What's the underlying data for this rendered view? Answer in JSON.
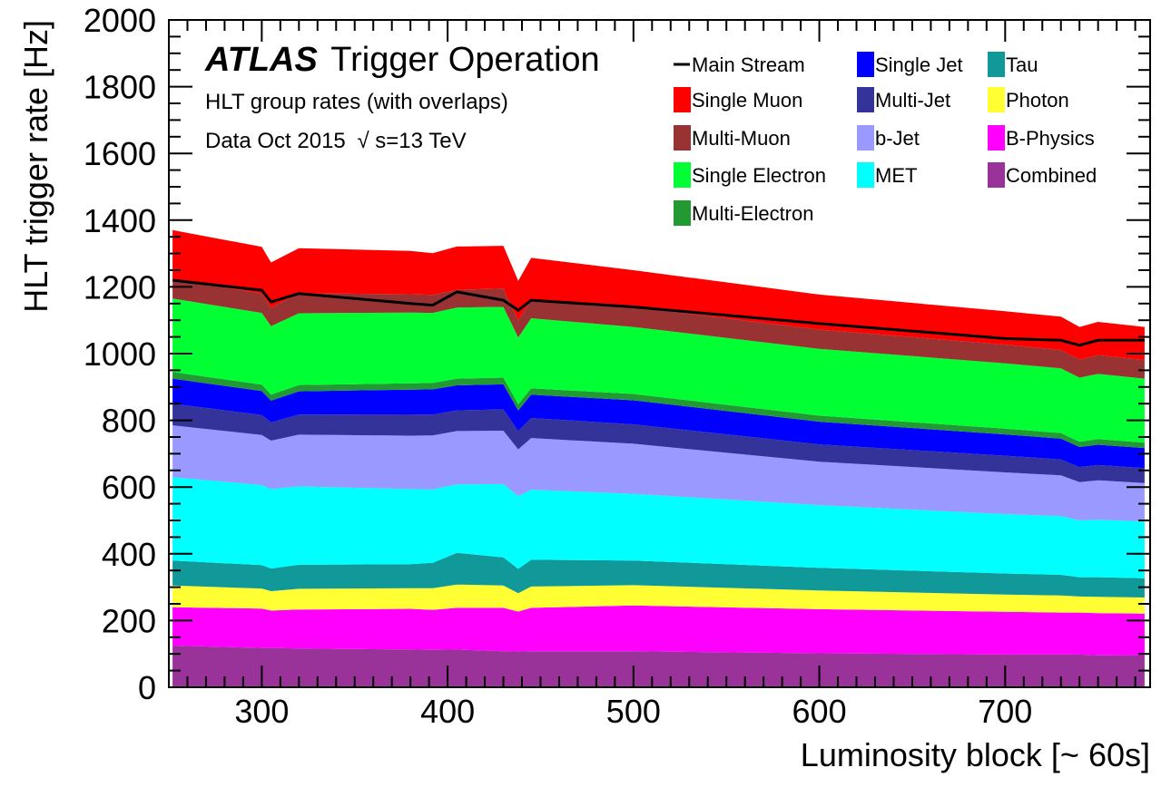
{
  "chart_data": {
    "type": "area",
    "stacked": true,
    "x": [
      252,
      300,
      305,
      320,
      380,
      392,
      405,
      430,
      438,
      445,
      500,
      600,
      700,
      730,
      740,
      750,
      775
    ],
    "xlim": [
      250,
      778
    ],
    "ylim": [
      0,
      2000
    ],
    "xticks": [
      300,
      400,
      500,
      600,
      700
    ],
    "yticks": [
      0,
      200,
      400,
      600,
      800,
      1000,
      1200,
      1400,
      1600,
      1800,
      2000
    ],
    "tick_labels_x": [
      "300",
      "400",
      "500",
      "600",
      "700"
    ],
    "tick_labels_y": [
      "0",
      "200",
      "400",
      "600",
      "800",
      "1000",
      "1200",
      "1400",
      "1600",
      "1800",
      "2000"
    ],
    "xlabel": "Luminosity block [~ 60s]",
    "ylabel": "HLT trigger rate [Hz]",
    "grid": false,
    "annotations": {
      "atlas_bold": "ATLAS",
      "atlas_rest": "Trigger Operation",
      "line2": "HLT group rates (with overlaps)",
      "line3_pre": "Data Oct 2015",
      "sqrt": "√",
      "line3_post": "s=13 TeV"
    },
    "stack_order_bottom_to_top": [
      "Combined",
      "B-Physics",
      "Photon",
      "Tau",
      "MET",
      "b-Jet",
      "Multi-Jet",
      "Single Jet",
      "Multi-Electron",
      "Single Electron",
      "Multi-Muon",
      "Single Muon"
    ],
    "series": [
      {
        "name": "Combined",
        "color": "#993399",
        "values": [
          125,
          118,
          118,
          116,
          113,
          112,
          113,
          108,
          107,
          108,
          108,
          102,
          98,
          98,
          98,
          96,
          95
        ]
      },
      {
        "name": "B-Physics",
        "color": "#ff00ff",
        "values": [
          115,
          118,
          112,
          117,
          122,
          120,
          125,
          130,
          120,
          130,
          137,
          132,
          128,
          126,
          126,
          126,
          126
        ]
      },
      {
        "name": "Photon",
        "color": "#ffff33",
        "values": [
          65,
          60,
          58,
          62,
          62,
          65,
          70,
          67,
          55,
          64,
          61,
          56,
          52,
          51,
          48,
          49,
          48
        ]
      },
      {
        "name": "Tau",
        "color": "#119999",
        "values": [
          75,
          70,
          68,
          72,
          72,
          76,
          95,
          84,
          73,
          80,
          74,
          68,
          63,
          62,
          58,
          59,
          58
        ]
      },
      {
        "name": "MET",
        "color": "#00ffff",
        "values": [
          250,
          240,
          238,
          235,
          225,
          220,
          205,
          220,
          218,
          210,
          200,
          188,
          178,
          176,
          170,
          172,
          170
        ]
      },
      {
        "name": "b-Jet",
        "color": "#9999ff",
        "values": [
          155,
          150,
          145,
          155,
          160,
          162,
          160,
          160,
          140,
          155,
          150,
          130,
          125,
          122,
          115,
          118,
          115
        ]
      },
      {
        "name": "Multi-Jet",
        "color": "#333399",
        "values": [
          65,
          60,
          55,
          60,
          64,
          62,
          62,
          64,
          55,
          60,
          58,
          52,
          50,
          48,
          45,
          46,
          45
        ]
      },
      {
        "name": "Single Jet",
        "color": "#0000ff",
        "values": [
          75,
          72,
          65,
          70,
          74,
          76,
          75,
          75,
          62,
          70,
          72,
          68,
          64,
          62,
          60,
          61,
          60
        ]
      },
      {
        "name": "Multi-Electron",
        "color": "#229933",
        "values": [
          20,
          19,
          18,
          19,
          19,
          19,
          20,
          20,
          18,
          19,
          19,
          18,
          17,
          17,
          16,
          17,
          16
        ]
      },
      {
        "name": "Single Electron",
        "color": "#00ff33",
        "values": [
          220,
          215,
          205,
          215,
          212,
          210,
          213,
          212,
          200,
          210,
          201,
          200,
          196,
          194,
          192,
          195,
          192
        ]
      },
      {
        "name": "Multi-Muon",
        "color": "#993333",
        "values": [
          60,
          58,
          56,
          60,
          55,
          54,
          53,
          55,
          52,
          56,
          60,
          58,
          56,
          55,
          54,
          56,
          56
        ]
      },
      {
        "name": "Single Muon",
        "color": "#ff0000",
        "values": [
          145,
          140,
          135,
          135,
          130,
          125,
          130,
          128,
          118,
          125,
          110,
          105,
          100,
          100,
          98,
          100,
          99
        ]
      }
    ],
    "main_stream": {
      "name": "Main Stream",
      "color": "#000000",
      "values": [
        1220,
        1190,
        1155,
        1180,
        1150,
        1145,
        1185,
        1160,
        1130,
        1160,
        1140,
        1090,
        1045,
        1040,
        1025,
        1040,
        1040
      ]
    },
    "legend": {
      "placement": "top-right",
      "columns": [
        [
          "Main Stream",
          "Single Muon",
          "Multi-Muon",
          "Single Electron",
          "Multi-Electron"
        ],
        [
          "Single Jet",
          "Multi-Jet",
          "b-Jet",
          "MET"
        ],
        [
          "Tau",
          "Photon",
          "B-Physics",
          "Combined"
        ]
      ]
    }
  }
}
